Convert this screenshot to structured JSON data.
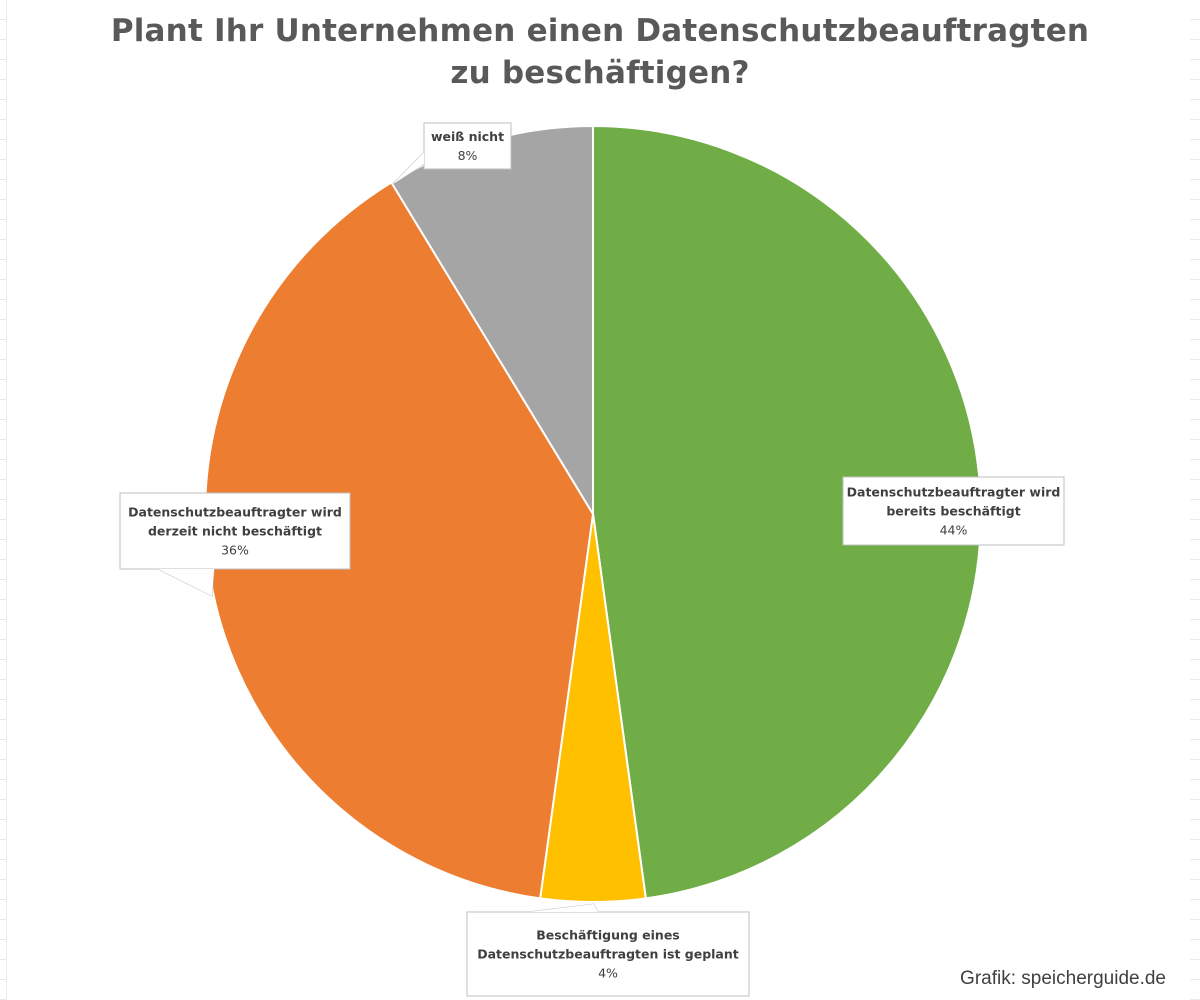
{
  "chart_data": {
    "type": "pie",
    "title": "Plant Ihr Unternehmen einen Datenschutzbeauftragten zu beschäftigen?",
    "title_lines": [
      "Plant Ihr Unternehmen einen Datenschutzbeauftragten",
      "zu beschäftigen?"
    ],
    "categories": [
      "Datenschutzbeauftragter wird bereits beschäftigt",
      "Beschäftigung eines Datenschutzbeauftragten ist geplant",
      "Datenschutzbeauftragter wird derzeit nicht beschäftigt",
      "weiß nicht"
    ],
    "values": [
      44,
      4,
      36,
      8
    ],
    "data_labels": [
      {
        "name_lines": [
          "Datenschutzbeauftragter wird",
          "bereits beschäftigt"
        ],
        "percent": "44%"
      },
      {
        "name_lines": [
          "Beschäftigung eines",
          "Datenschutzbeauftragten ist geplant"
        ],
        "percent": "4%"
      },
      {
        "name_lines": [
          "Datenschutzbeauftragter wird",
          "derzeit nicht beschäftigt"
        ],
        "percent": "36%"
      },
      {
        "name_lines": [
          "weiß nicht"
        ],
        "percent": "8%"
      }
    ],
    "colors": [
      "#70ad47",
      "#ffc000",
      "#ed7d31",
      "#a5a5a5"
    ],
    "start_angle": "12 o'clock",
    "direction": "clockwise",
    "legend": "none",
    "grid": false
  },
  "credit": "Grafik: speicherguide.de"
}
